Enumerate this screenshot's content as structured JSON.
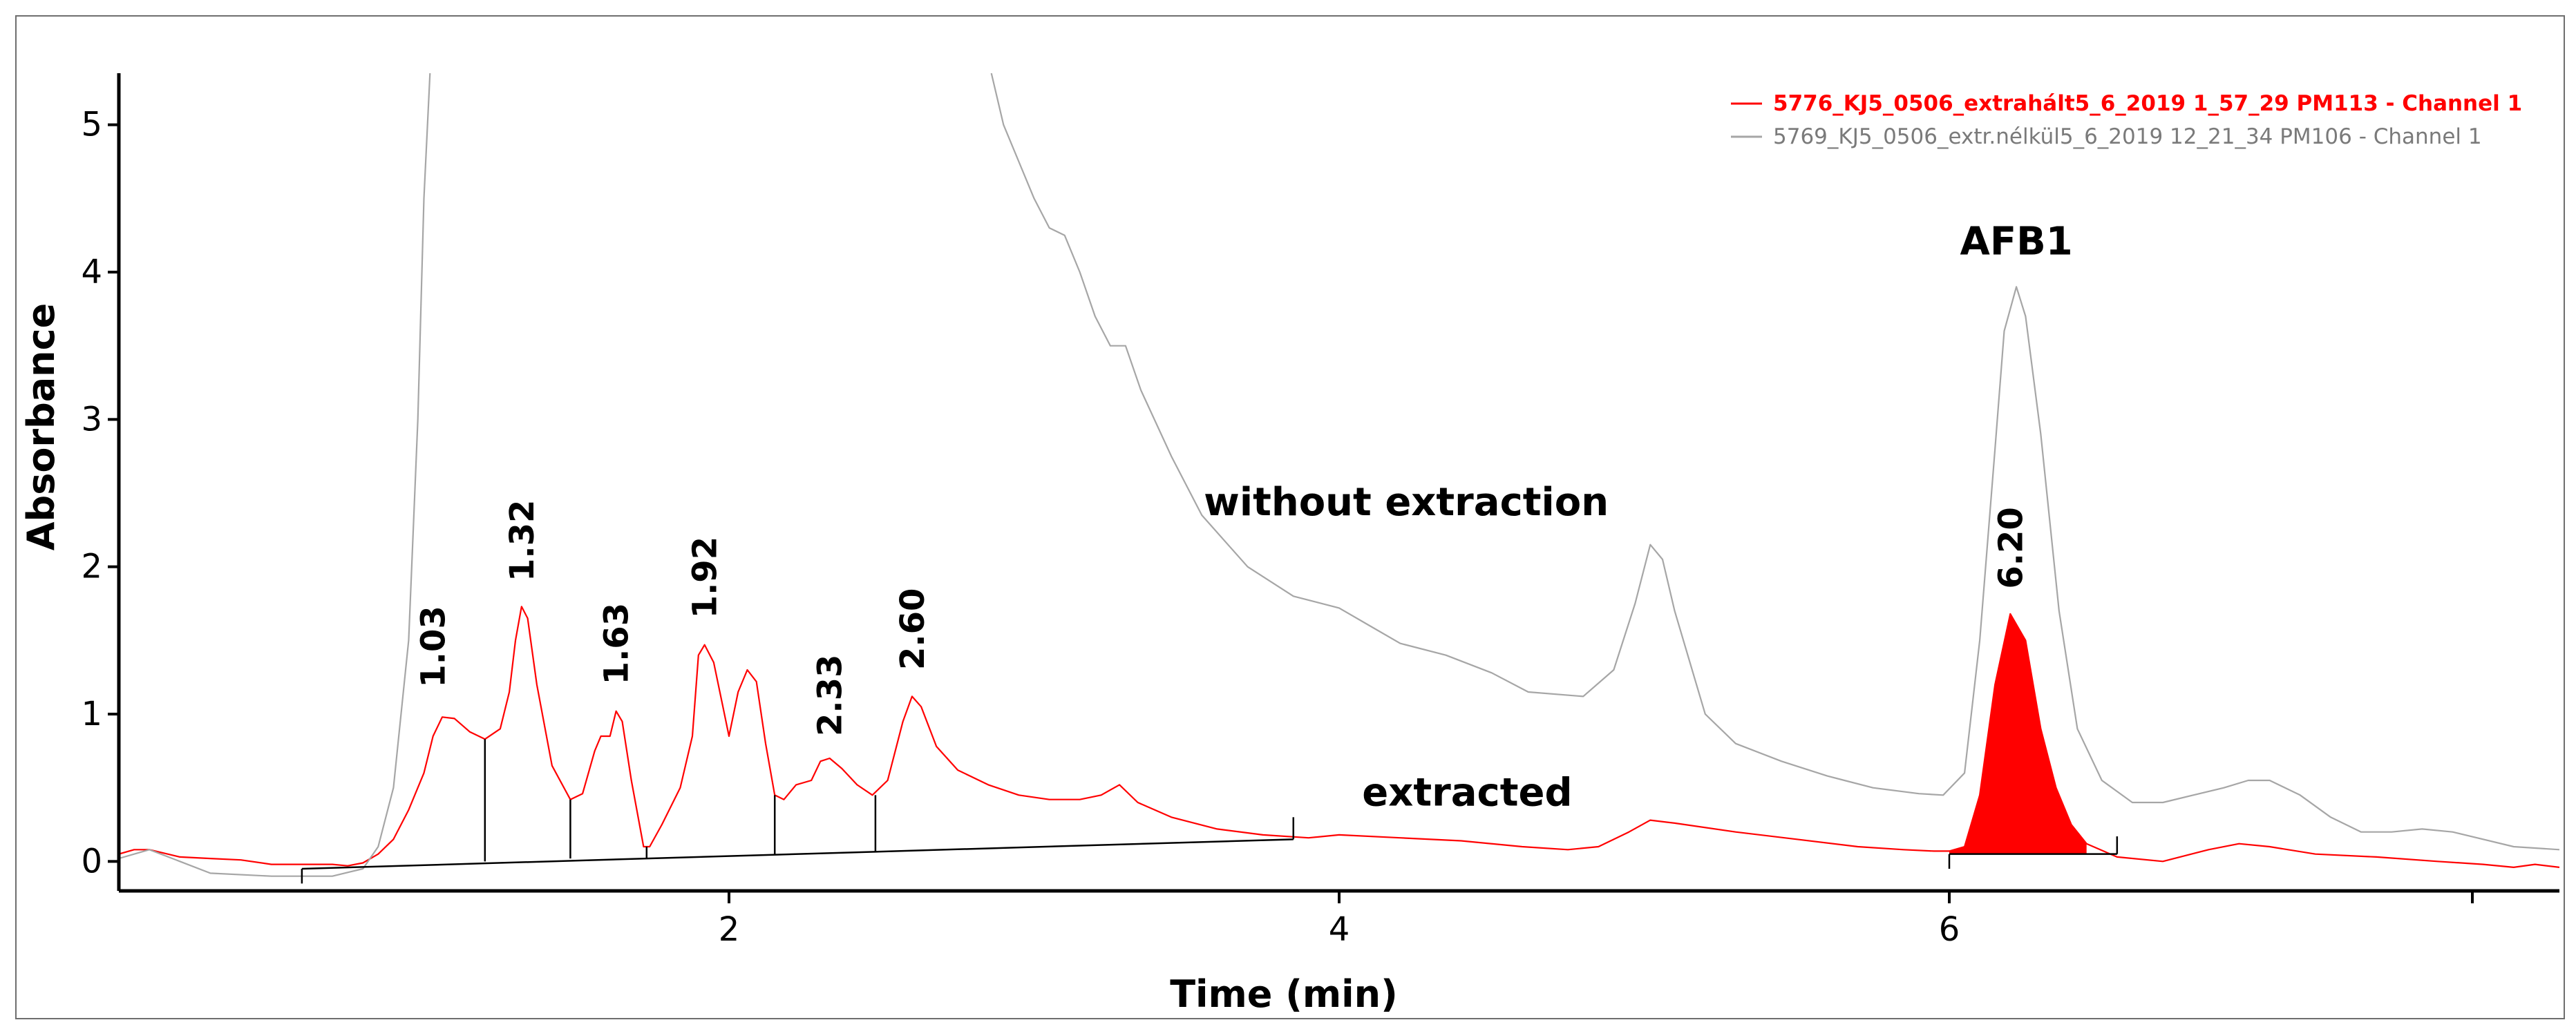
{
  "chart_data": {
    "type": "line",
    "xlabel": "Time (min)",
    "ylabel": "Absorbance",
    "xlim": [
      0.0,
      8.0
    ],
    "ylim": [
      -0.2,
      5.35
    ],
    "x_ticks": [
      2,
      4,
      6
    ],
    "y_ticks": [
      0,
      1,
      2,
      3,
      4,
      5
    ],
    "grid": false,
    "legend_position": "top-right",
    "series": [
      {
        "name": "5776_KJ5_0506_extrahált5_6_2019 1_57_29 PM113 -  Channel 1",
        "color": "#ff0000",
        "bold": true,
        "points": [
          [
            0.0,
            0.05
          ],
          [
            0.05,
            0.08
          ],
          [
            0.1,
            0.08
          ],
          [
            0.2,
            0.03
          ],
          [
            0.3,
            0.02
          ],
          [
            0.4,
            0.01
          ],
          [
            0.5,
            -0.02
          ],
          [
            0.6,
            -0.02
          ],
          [
            0.7,
            -0.02
          ],
          [
            0.75,
            -0.03
          ],
          [
            0.8,
            -0.01
          ],
          [
            0.85,
            0.05
          ],
          [
            0.9,
            0.15
          ],
          [
            0.95,
            0.35
          ],
          [
            1.0,
            0.6
          ],
          [
            1.03,
            0.85
          ],
          [
            1.06,
            0.98
          ],
          [
            1.1,
            0.97
          ],
          [
            1.15,
            0.88
          ],
          [
            1.2,
            0.83
          ],
          [
            1.25,
            0.9
          ],
          [
            1.28,
            1.15
          ],
          [
            1.3,
            1.5
          ],
          [
            1.32,
            1.73
          ],
          [
            1.34,
            1.65
          ],
          [
            1.37,
            1.2
          ],
          [
            1.42,
            0.65
          ],
          [
            1.48,
            0.42
          ],
          [
            1.52,
            0.46
          ],
          [
            1.56,
            0.75
          ],
          [
            1.58,
            0.85
          ],
          [
            1.61,
            0.85
          ],
          [
            1.63,
            1.02
          ],
          [
            1.65,
            0.95
          ],
          [
            1.68,
            0.55
          ],
          [
            1.72,
            0.1
          ],
          [
            1.74,
            0.1
          ],
          [
            1.78,
            0.25
          ],
          [
            1.84,
            0.5
          ],
          [
            1.88,
            0.85
          ],
          [
            1.9,
            1.4
          ],
          [
            1.92,
            1.47
          ],
          [
            1.95,
            1.35
          ],
          [
            1.98,
            1.05
          ],
          [
            2.0,
            0.85
          ],
          [
            2.03,
            1.15
          ],
          [
            2.06,
            1.3
          ],
          [
            2.09,
            1.22
          ],
          [
            2.12,
            0.8
          ],
          [
            2.15,
            0.45
          ],
          [
            2.18,
            0.42
          ],
          [
            2.22,
            0.52
          ],
          [
            2.27,
            0.55
          ],
          [
            2.3,
            0.68
          ],
          [
            2.33,
            0.7
          ],
          [
            2.37,
            0.63
          ],
          [
            2.42,
            0.52
          ],
          [
            2.47,
            0.45
          ],
          [
            2.52,
            0.55
          ],
          [
            2.57,
            0.95
          ],
          [
            2.6,
            1.12
          ],
          [
            2.63,
            1.05
          ],
          [
            2.68,
            0.78
          ],
          [
            2.75,
            0.62
          ],
          [
            2.85,
            0.52
          ],
          [
            2.95,
            0.45
          ],
          [
            3.05,
            0.42
          ],
          [
            3.15,
            0.42
          ],
          [
            3.22,
            0.45
          ],
          [
            3.28,
            0.52
          ],
          [
            3.34,
            0.4
          ],
          [
            3.45,
            0.3
          ],
          [
            3.6,
            0.22
          ],
          [
            3.75,
            0.18
          ],
          [
            3.9,
            0.16
          ],
          [
            4.0,
            0.18
          ],
          [
            4.2,
            0.16
          ],
          [
            4.4,
            0.14
          ],
          [
            4.6,
            0.1
          ],
          [
            4.75,
            0.08
          ],
          [
            4.85,
            0.1
          ],
          [
            4.95,
            0.2
          ],
          [
            5.02,
            0.28
          ],
          [
            5.1,
            0.26
          ],
          [
            5.3,
            0.2
          ],
          [
            5.5,
            0.15
          ],
          [
            5.7,
            0.1
          ],
          [
            5.85,
            0.08
          ],
          [
            5.95,
            0.07
          ],
          [
            6.0,
            0.07
          ],
          [
            6.05,
            0.1
          ],
          [
            6.1,
            0.45
          ],
          [
            6.15,
            1.2
          ],
          [
            6.2,
            1.68
          ],
          [
            6.25,
            1.5
          ],
          [
            6.3,
            0.9
          ],
          [
            6.35,
            0.5
          ],
          [
            6.4,
            0.25
          ],
          [
            6.45,
            0.12
          ],
          [
            6.55,
            0.03
          ],
          [
            6.7,
            0.0
          ],
          [
            6.85,
            0.08
          ],
          [
            6.95,
            0.12
          ],
          [
            7.05,
            0.1
          ],
          [
            7.2,
            0.05
          ],
          [
            7.4,
            0.03
          ],
          [
            7.6,
            0.0
          ],
          [
            7.75,
            -0.02
          ],
          [
            7.85,
            -0.04
          ],
          [
            7.92,
            -0.02
          ],
          [
            8.0,
            -0.04
          ]
        ]
      },
      {
        "name": "5769_KJ5_0506_extr.nélkül5_6_2019 12_21_34 PM106 -  Channel 1",
        "color": "#a6a6a6",
        "bold": false,
        "points": [
          [
            0.0,
            0.02
          ],
          [
            0.1,
            0.08
          ],
          [
            0.2,
            0.0
          ],
          [
            0.3,
            -0.08
          ],
          [
            0.5,
            -0.1
          ],
          [
            0.7,
            -0.1
          ],
          [
            0.8,
            -0.05
          ],
          [
            0.85,
            0.1
          ],
          [
            0.9,
            0.5
          ],
          [
            0.95,
            1.5
          ],
          [
            0.98,
            3.0
          ],
          [
            1.0,
            4.5
          ],
          [
            1.02,
            5.35
          ]
        ]
      },
      {
        "name": "5769_KJ5_0506_extr.nélkül5_6_2019 12_21_34 PM106 -  Channel 1 (cont.)",
        "color": "#a6a6a6",
        "bold": false,
        "points": [
          [
            2.86,
            5.35
          ],
          [
            2.9,
            5.0
          ],
          [
            2.95,
            4.75
          ],
          [
            3.0,
            4.5
          ],
          [
            3.05,
            4.3
          ],
          [
            3.1,
            4.25
          ],
          [
            3.15,
            4.0
          ],
          [
            3.2,
            3.7
          ],
          [
            3.25,
            3.5
          ],
          [
            3.3,
            3.5
          ],
          [
            3.35,
            3.2
          ],
          [
            3.45,
            2.75
          ],
          [
            3.55,
            2.35
          ],
          [
            3.7,
            2.0
          ],
          [
            3.85,
            1.8
          ],
          [
            4.0,
            1.72
          ],
          [
            4.1,
            1.6
          ],
          [
            4.2,
            1.48
          ],
          [
            4.35,
            1.4
          ],
          [
            4.5,
            1.28
          ],
          [
            4.62,
            1.15
          ],
          [
            4.8,
            1.12
          ],
          [
            4.9,
            1.3
          ],
          [
            4.97,
            1.75
          ],
          [
            5.02,
            2.15
          ],
          [
            5.06,
            2.05
          ],
          [
            5.1,
            1.7
          ],
          [
            5.2,
            1.0
          ],
          [
            5.3,
            0.8
          ],
          [
            5.45,
            0.68
          ],
          [
            5.6,
            0.58
          ],
          [
            5.75,
            0.5
          ],
          [
            5.9,
            0.46
          ],
          [
            5.98,
            0.45
          ],
          [
            6.05,
            0.6
          ],
          [
            6.1,
            1.5
          ],
          [
            6.15,
            2.8
          ],
          [
            6.18,
            3.6
          ],
          [
            6.22,
            3.9
          ],
          [
            6.25,
            3.7
          ],
          [
            6.3,
            2.9
          ],
          [
            6.36,
            1.7
          ],
          [
            6.42,
            0.9
          ],
          [
            6.5,
            0.55
          ],
          [
            6.6,
            0.4
          ],
          [
            6.7,
            0.4
          ],
          [
            6.8,
            0.45
          ],
          [
            6.9,
            0.5
          ],
          [
            6.98,
            0.55
          ],
          [
            7.05,
            0.55
          ],
          [
            7.15,
            0.45
          ],
          [
            7.25,
            0.3
          ],
          [
            7.35,
            0.2
          ],
          [
            7.45,
            0.2
          ],
          [
            7.55,
            0.22
          ],
          [
            7.65,
            0.2
          ],
          [
            7.75,
            0.15
          ],
          [
            7.85,
            0.1
          ],
          [
            8.0,
            0.08
          ]
        ]
      }
    ],
    "filled_peak": {
      "color": "#ff0000",
      "from": 6.0,
      "to": 6.45,
      "baseline": 0.05
    },
    "baselines": [
      {
        "from": [
          0.6,
          -0.05
        ],
        "to": [
          3.85,
          0.15
        ]
      },
      {
        "from": [
          6.0,
          0.05
        ],
        "to": [
          6.55,
          0.05
        ]
      }
    ],
    "integration_markers": [
      {
        "x": 0.6,
        "bottom": -0.15,
        "top": -0.05
      },
      {
        "x": 1.2,
        "bottom": 0.0,
        "top": 0.83
      },
      {
        "x": 1.48,
        "bottom": 0.02,
        "top": 0.42
      },
      {
        "x": 1.73,
        "bottom": 0.02,
        "top": 0.1
      },
      {
        "x": 2.15,
        "bottom": 0.05,
        "top": 0.45
      },
      {
        "x": 2.48,
        "bottom": 0.07,
        "top": 0.45
      },
      {
        "x": 3.85,
        "bottom": 0.15,
        "top": 0.3
      },
      {
        "x": 6.0,
        "bottom": -0.05,
        "top": 0.05
      },
      {
        "x": 6.55,
        "bottom": 0.05,
        "top": 0.17
      }
    ],
    "peak_labels": [
      {
        "text": "1.03",
        "x": 1.03,
        "y": 1.18
      },
      {
        "text": "1.32",
        "x": 1.32,
        "y": 1.9
      },
      {
        "text": "1.63",
        "x": 1.63,
        "y": 1.2
      },
      {
        "text": "1.92",
        "x": 1.92,
        "y": 1.65
      },
      {
        "text": "2.33",
        "x": 2.33,
        "y": 0.85
      },
      {
        "text": "2.60",
        "x": 2.6,
        "y": 1.3
      },
      {
        "text": "6.20",
        "x": 6.2,
        "y": 1.85
      }
    ],
    "annotations": [
      {
        "text": "without extraction",
        "x": 4.22,
        "y": 2.35
      },
      {
        "text": "extracted",
        "x": 4.42,
        "y": 0.38
      },
      {
        "text": "AFB1",
        "x": 6.22,
        "y": 4.12
      }
    ]
  }
}
